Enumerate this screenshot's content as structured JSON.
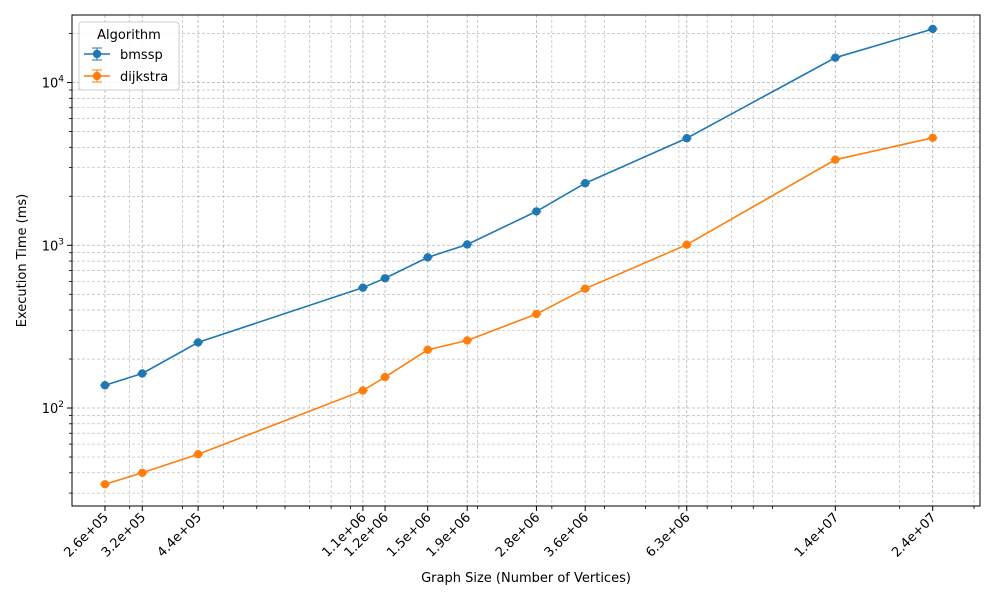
{
  "chart_data": {
    "type": "line",
    "xlabel": "Graph Size (Number of Vertices)",
    "ylabel": "Execution Time (ms)",
    "x_scale": "log",
    "y_scale": "log",
    "grid": true,
    "legend": {
      "title": "Algorithm",
      "placement": "top-left"
    },
    "x": [
      262144,
      321270,
      435666,
      1070376,
      1207945,
      1524453,
      1890815,
      2758119,
      3598623,
      6262104,
      14081816,
      23947347
    ],
    "x_tick_labels": [
      "2.6e+05",
      "3.2e+05",
      "4.4e+05",
      "1.1e+06",
      "1.2e+06",
      "1.5e+06",
      "1.9e+06",
      "2.8e+06",
      "3.6e+06",
      "6.3e+06",
      "1.4e+07",
      "2.4e+07"
    ],
    "y_tick_labels": [
      "10^2",
      "10^3",
      "10^4"
    ],
    "ylim": [
      25,
      26000
    ],
    "series": [
      {
        "name": "bmssp",
        "color": "#1f77b4",
        "values": [
          138,
          163,
          253,
          549,
          627,
          843,
          1011,
          1615,
          2406,
          4548,
          14214,
          21339
        ]
      },
      {
        "name": "dijkstra",
        "color": "#ff7f0e",
        "values": [
          34,
          40,
          52,
          128,
          155,
          228,
          260,
          378,
          541,
          1008,
          3357,
          4575
        ]
      }
    ]
  }
}
